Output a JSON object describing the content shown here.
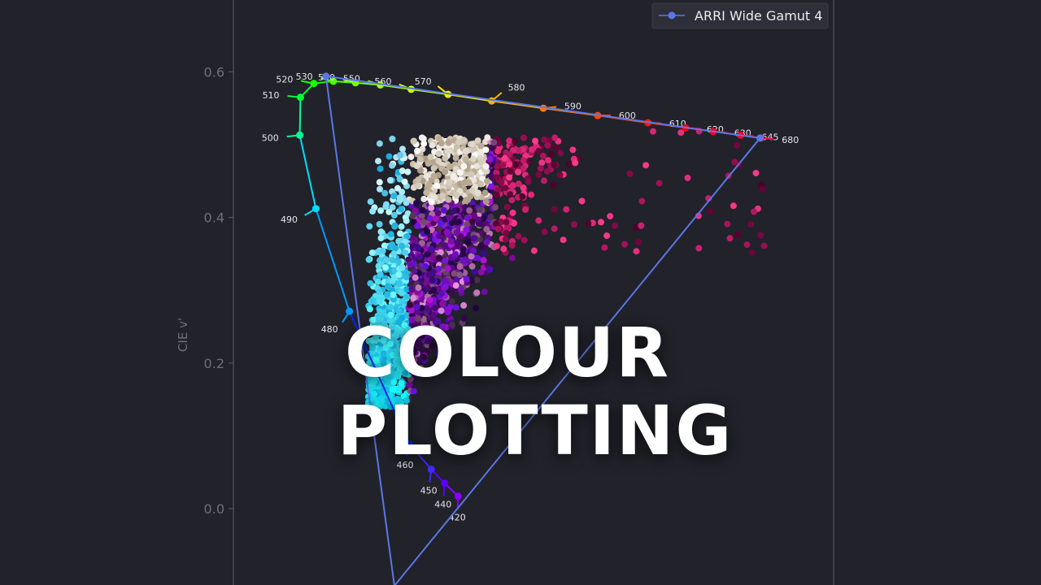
{
  "title": {
    "line1": "COLOUR",
    "line2": "PLOTTING"
  },
  "chart_data": {
    "type": "scatter",
    "ylabel": "CIE v'",
    "xlabel": "",
    "ylim": [
      -0.1,
      0.7
    ],
    "xlim": [
      -0.18,
      0.7
    ],
    "y_ticks": [
      0.0,
      0.2,
      0.4,
      0.6
    ],
    "y_tick_labels": [
      "0.0",
      "0.2",
      "0.4",
      "0.6"
    ],
    "grid": false,
    "legend": {
      "position": "top-right",
      "entries": [
        {
          "label": "ARRI Wide Gamut 4",
          "color": "#5b77e6"
        }
      ]
    },
    "spectral_locus": [
      {
        "nm": 420,
        "u": 0.244,
        "v": 0.017,
        "color": "#8a00ff"
      },
      {
        "nm": 440,
        "u": 0.224,
        "v": 0.035,
        "color": "#5a00ff"
      },
      {
        "nm": 450,
        "u": 0.204,
        "v": 0.054,
        "color": "#3e2bff"
      },
      {
        "nm": 460,
        "u": 0.171,
        "v": 0.089,
        "color": "#0028ff"
      },
      {
        "nm": 480,
        "u": 0.082,
        "v": 0.271,
        "color": "#0099ff"
      },
      {
        "nm": 490,
        "u": 0.032,
        "v": 0.412,
        "color": "#00dcff"
      },
      {
        "nm": 500,
        "u": 0.008,
        "v": 0.513,
        "color": "#00ff95"
      },
      {
        "nm": 510,
        "u": 0.009,
        "v": 0.565,
        "color": "#00ff3a"
      },
      {
        "nm": 520,
        "u": 0.029,
        "v": 0.584,
        "color": "#12ff00"
      },
      {
        "nm": 530,
        "u": 0.058,
        "v": 0.587,
        "color": "#4aff00"
      },
      {
        "nm": 540,
        "u": 0.091,
        "v": 0.585,
        "color": "#7bff00"
      },
      {
        "nm": 550,
        "u": 0.128,
        "v": 0.582,
        "color": "#9eff00"
      },
      {
        "nm": 560,
        "u": 0.174,
        "v": 0.576,
        "color": "#ccff00"
      },
      {
        "nm": 570,
        "u": 0.229,
        "v": 0.569,
        "color": "#f2f000"
      },
      {
        "nm": 580,
        "u": 0.294,
        "v": 0.56,
        "color": "#ffb400"
      },
      {
        "nm": 590,
        "u": 0.371,
        "v": 0.55,
        "color": "#ff7a00"
      },
      {
        "nm": 600,
        "u": 0.452,
        "v": 0.54,
        "color": "#ff4600"
      },
      {
        "nm": 610,
        "u": 0.527,
        "v": 0.53,
        "color": "#ff1800"
      },
      {
        "nm": 620,
        "u": 0.583,
        "v": 0.523,
        "color": "#ff0010"
      },
      {
        "nm": 630,
        "u": 0.624,
        "v": 0.518,
        "color": "#ff0020"
      },
      {
        "nm": 645,
        "u": 0.665,
        "v": 0.513,
        "color": "#ff0030"
      },
      {
        "nm": 680,
        "u": 0.695,
        "v": 0.509,
        "color": "#ff0050"
      }
    ],
    "gamut": {
      "name": "ARRI Wide Gamut 4",
      "color": "#5b77e6",
      "primaries": [
        {
          "u": 0.694,
          "v": 0.509
        },
        {
          "u": 0.047,
          "v": 0.594
        },
        {
          "u": 0.149,
          "v": -0.106
        }
      ]
    },
    "scatter_points": 2200
  }
}
